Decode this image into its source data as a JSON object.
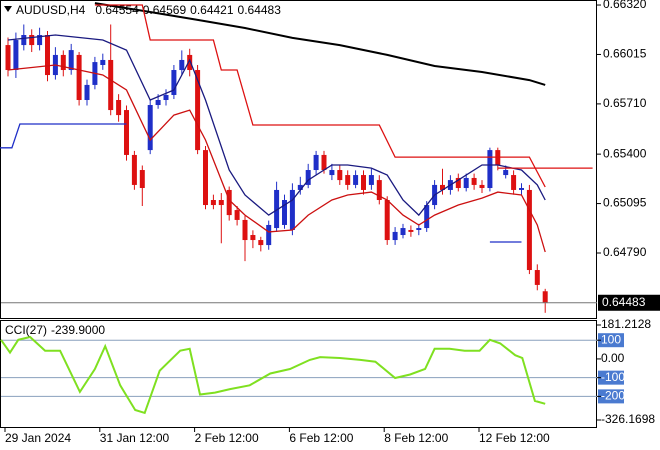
{
  "chart_data": {
    "type": "candlestick",
    "symbol": "AUDUSD,H4",
    "categories": [
      "29 Jan 2024",
      null,
      null,
      null,
      null,
      null,
      null,
      null,
      null,
      null,
      null,
      null,
      "31 Jan 12:00",
      null,
      null,
      null,
      null,
      null,
      null,
      null,
      null,
      null,
      null,
      null,
      "2 Feb 12:00",
      null,
      null,
      null,
      null,
      null,
      null,
      null,
      null,
      null,
      null,
      null,
      "6 Feb 12:00",
      null,
      null,
      null,
      null,
      null,
      null,
      null,
      null,
      null,
      null,
      null,
      "8 Feb 12:00",
      null,
      null,
      null,
      null,
      null,
      null,
      null,
      null,
      null,
      null,
      null,
      "12 Feb 12:00",
      null,
      null,
      null,
      null,
      null,
      null,
      null,
      null
    ],
    "open": [
      0.66073,
      0.65919,
      0.66073,
      0.66135,
      0.66073,
      0.66135,
      0.65888,
      0.66012,
      0.65919,
      0.66012,
      0.65734,
      0.65827,
      0.6595,
      0.65981,
      0.65734,
      0.65672,
      0.65395,
      0.65302,
      0.65425,
      0.65703,
      0.65734,
      0.65765,
      0.65919,
      0.66012,
      0.65919,
      0.65425,
      0.65117,
      0.65117,
      0.65179,
      0.65055,
      0.64994,
      0.64901,
      0.6487,
      0.64839,
      0.64944,
      0.64963,
      0.64932,
      0.65179,
      0.6521,
      0.65302,
      0.65395,
      0.65271,
      0.65302,
      0.65271,
      0.6521,
      0.65271,
      0.6521,
      0.6524,
      0.65117,
      0.6487,
      0.64901,
      0.64932,
      0.64932,
      0.64944,
      0.65086,
      0.6521,
      0.65179,
      0.65253,
      0.65191,
      0.65253,
      0.6521,
      0.65191,
      0.65425,
      0.65271,
      0.65271,
      0.65179,
      0.65179,
      0.64685,
      0.64554
    ],
    "high": [
      0.6612,
      0.6615,
      0.662,
      0.6617,
      0.6618,
      0.6616,
      0.6606,
      0.6604,
      0.6608,
      0.6603,
      0.6586,
      0.66,
      0.6602,
      0.662,
      0.6577,
      0.657,
      0.6542,
      0.6533,
      0.6574,
      0.6577,
      0.658,
      0.6595,
      0.6604,
      0.6605,
      0.6595,
      0.6545,
      0.6515,
      0.6516,
      0.652,
      0.6508,
      0.6502,
      0.6493,
      0.6489,
      0.6499,
      0.6523,
      0.6515,
      0.6522,
      0.6526,
      0.6534,
      0.6542,
      0.6542,
      0.6534,
      0.6533,
      0.653,
      0.653,
      0.653,
      0.6531,
      0.6527,
      0.6514,
      0.6495,
      0.6497,
      0.6496,
      0.6497,
      0.6511,
      0.6524,
      0.6531,
      0.6527,
      0.6528,
      0.6528,
      0.6528,
      0.6524,
      0.6544,
      0.6544,
      0.6533,
      0.653,
      0.6522,
      0.6521,
      0.6472,
      0.64569
    ],
    "low": [
      0.6588,
      0.6587,
      0.6604,
      0.6603,
      0.6604,
      0.6585,
      0.6586,
      0.6588,
      0.6589,
      0.657,
      0.657,
      0.658,
      0.6592,
      0.6564,
      0.656,
      0.6536,
      0.6518,
      0.6508,
      0.654,
      0.6568,
      0.657,
      0.6574,
      0.6589,
      0.6588,
      0.654,
      0.6506,
      0.6506,
      0.6485,
      0.6499,
      0.6496,
      0.6474,
      0.6482,
      0.648,
      0.6481,
      0.6492,
      0.6494,
      0.649,
      0.6515,
      0.6519,
      0.6527,
      0.6528,
      0.6524,
      0.6521,
      0.6518,
      0.6519,
      0.6515,
      0.6518,
      0.6509,
      0.6484,
      0.6484,
      0.6488,
      0.6489,
      0.649,
      0.6492,
      0.6506,
      0.6515,
      0.6515,
      0.6517,
      0.6517,
      0.6518,
      0.6516,
      0.6517,
      0.653,
      0.6525,
      0.6515,
      0.6515,
      0.6466,
      0.6456,
      0.64421
    ],
    "close": [
      0.65919,
      0.66104,
      0.66135,
      0.66073,
      0.66135,
      0.65888,
      0.66012,
      0.65919,
      0.66042,
      0.65734,
      0.65827,
      0.65968,
      0.65981,
      0.65672,
      0.65641,
      0.65395,
      0.6521,
      0.65191,
      0.65703,
      0.65734,
      0.65765,
      0.65919,
      0.65981,
      0.65919,
      0.65425,
      0.65086,
      0.65086,
      0.65086,
      0.65024,
      0.64994,
      0.6487,
      0.6487,
      0.64839,
      0.64963,
      0.65179,
      0.65117,
      0.65179,
      0.6521,
      0.65302,
      0.65395,
      0.65302,
      0.65302,
      0.6524,
      0.6521,
      0.65271,
      0.65179,
      0.65271,
      0.65117,
      0.6487,
      0.6492,
      0.64944,
      0.6492,
      0.64944,
      0.65086,
      0.6521,
      0.65179,
      0.6524,
      0.65191,
      0.65253,
      0.6521,
      0.65191,
      0.65425,
      0.65333,
      0.65302,
      0.65179,
      0.65191,
      0.64685,
      0.64593,
      0.64483
    ],
    "up_color": "#1f2fc8",
    "down_color": "#dd1111",
    "ylim": [
      0.64389,
      0.66351
    ],
    "yticks": [
      {
        "value": 0.6632,
        "label": "0.66320"
      },
      0.66015,
      {
        "value": 0.6571,
        "label": "0.65710"
      },
      {
        "value": 0.654,
        "label": "0.65400"
      },
      0.65095,
      {
        "value": 0.6479,
        "label": "0.64790"
      }
    ],
    "lines": [
      {
        "color": "#000000",
        "x": [
          11,
          18,
          24,
          30,
          36,
          42,
          48,
          54,
          60,
          66,
          68
        ],
        "values": [
          0.66332,
          0.66277,
          0.66228,
          0.66178,
          0.66117,
          0.66073,
          0.66012,
          0.65944,
          0.65907,
          0.65857,
          0.65827
        ]
      },
      {
        "color": "#1a1a80",
        "x": [
          0,
          6,
          12,
          15,
          18,
          21,
          23,
          25,
          28,
          30,
          33,
          36,
          38,
          41,
          43,
          46,
          48,
          50,
          52,
          54,
          57,
          60,
          62,
          65,
          67,
          68
        ],
        "values": [
          0.66104,
          0.66135,
          0.66104,
          0.66042,
          0.65734,
          0.65796,
          0.65981,
          0.65734,
          0.65302,
          0.65148,
          0.65024,
          0.65117,
          0.6524,
          0.65333,
          0.65333,
          0.65314,
          0.65271,
          0.65117,
          0.65024,
          0.65148,
          0.6524,
          0.65333,
          0.65333,
          0.65302,
          0.6521,
          0.65117
        ]
      },
      {
        "color": "#cc1010",
        "x": [
          0,
          6,
          12,
          15,
          18,
          21,
          23,
          25,
          28,
          30,
          33,
          36,
          38,
          41,
          43,
          46,
          48,
          50,
          52,
          54,
          57,
          60,
          62,
          65,
          67,
          68
        ],
        "values": [
          0.65919,
          0.6595,
          0.65888,
          0.65796,
          0.65487,
          0.65641,
          0.65672,
          0.65487,
          0.65117,
          0.65024,
          0.6492,
          0.64932,
          0.65024,
          0.65117,
          0.65148,
          0.65166,
          0.65117,
          0.65024,
          0.64963,
          0.65024,
          0.65086,
          0.65129,
          0.65166,
          0.65148,
          0.64963,
          0.64796
        ]
      },
      {
        "color": "#dd1111",
        "x": [
          11,
          17,
          18,
          26,
          27,
          29,
          31,
          47,
          49,
          61,
          66,
          68
        ],
        "values": [
          0.6632,
          0.6632,
          0.66104,
          0.66104,
          0.65919,
          0.65919,
          0.6558,
          0.6558,
          0.65382,
          0.65382,
          0.65382,
          0.65197
        ]
      },
      {
        "color": "#dd1111",
        "x": [
          62,
          74
        ],
        "values": [
          0.65314,
          0.65314
        ]
      },
      {
        "color": "#1f2fc8",
        "x": [
          -1,
          0.5,
          1.5,
          15
        ],
        "values": [
          0.65439,
          0.65439,
          0.65586,
          0.65586
        ]
      },
      {
        "color": "#1f2fc8",
        "x": [
          61,
          65
        ],
        "values": [
          0.64858,
          0.64858
        ]
      }
    ],
    "indicator": {
      "type": "line",
      "name": "CCI(27)",
      "value_label": "-239.9000",
      "color": "#7fe020",
      "x": [
        -1,
        0.25,
        1.3,
        2.8,
        4.7,
        6.6,
        9.1,
        11,
        12.3,
        14.2,
        16.1,
        17.3,
        19.2,
        21.8,
        23,
        24.3,
        26.2,
        28.1,
        30.6,
        33.2,
        35.7,
        38.2,
        39.5,
        42,
        44.6,
        46.5,
        49,
        50.9,
        52.8,
        54,
        55.9,
        57.8,
        59.7,
        61,
        62.3,
        64.2,
        65.1,
        66.7,
        68
      ],
      "values": [
        102,
        34,
        102,
        117,
        44,
        44,
        -176,
        -54,
        68,
        -141,
        -273,
        -288,
        -63,
        44,
        54,
        -190,
        -180,
        -161,
        -141,
        -78,
        -54,
        -5,
        10,
        5,
        -5,
        -15,
        -102,
        -83,
        -54,
        54,
        54,
        44,
        44,
        102,
        83,
        20,
        5,
        -224,
        -239.9
      ],
      "ylim": [
        -326.1698,
        181.2128
      ],
      "yticks": [
        181.2128,
        100,
        {
          "value": 0,
          "label": "0.00"
        },
        -100,
        -200,
        -326.1698
      ]
    }
  }
}
